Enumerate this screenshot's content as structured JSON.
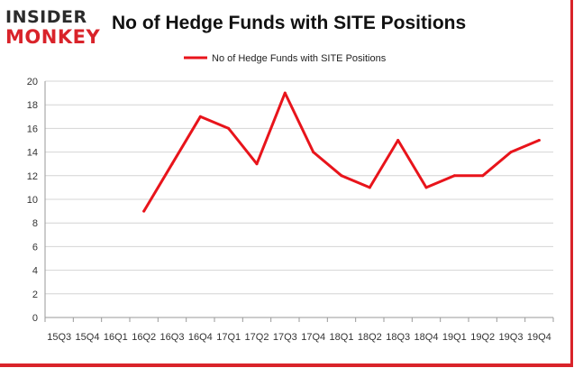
{
  "branding": {
    "logo_line1": "INSIDER",
    "logo_line2": "MONKEY",
    "brand_red": "#d9232a",
    "brand_dark": "#2b2b2b"
  },
  "chart_data": {
    "type": "line",
    "title": "No of Hedge Funds with SITE Positions",
    "xlabel": "",
    "ylabel": "",
    "categories": [
      "15Q3",
      "15Q4",
      "16Q1",
      "16Q2",
      "16Q3",
      "16Q4",
      "17Q1",
      "17Q2",
      "17Q3",
      "17Q4",
      "18Q1",
      "18Q2",
      "18Q3",
      "18Q4",
      "19Q1",
      "19Q2",
      "19Q3",
      "19Q4"
    ],
    "series": [
      {
        "name": "No of Hedge Funds with SITE Positions",
        "color": "#e8141b",
        "values": [
          null,
          null,
          null,
          9,
          13,
          17,
          16,
          13,
          19,
          14,
          12,
          11,
          15,
          11,
          12,
          12,
          14,
          15
        ]
      }
    ],
    "ylim": [
      0,
      20
    ],
    "yticks": [
      0,
      2,
      4,
      6,
      8,
      10,
      12,
      14,
      16,
      18,
      20
    ],
    "grid": true,
    "legend": "top-center"
  }
}
